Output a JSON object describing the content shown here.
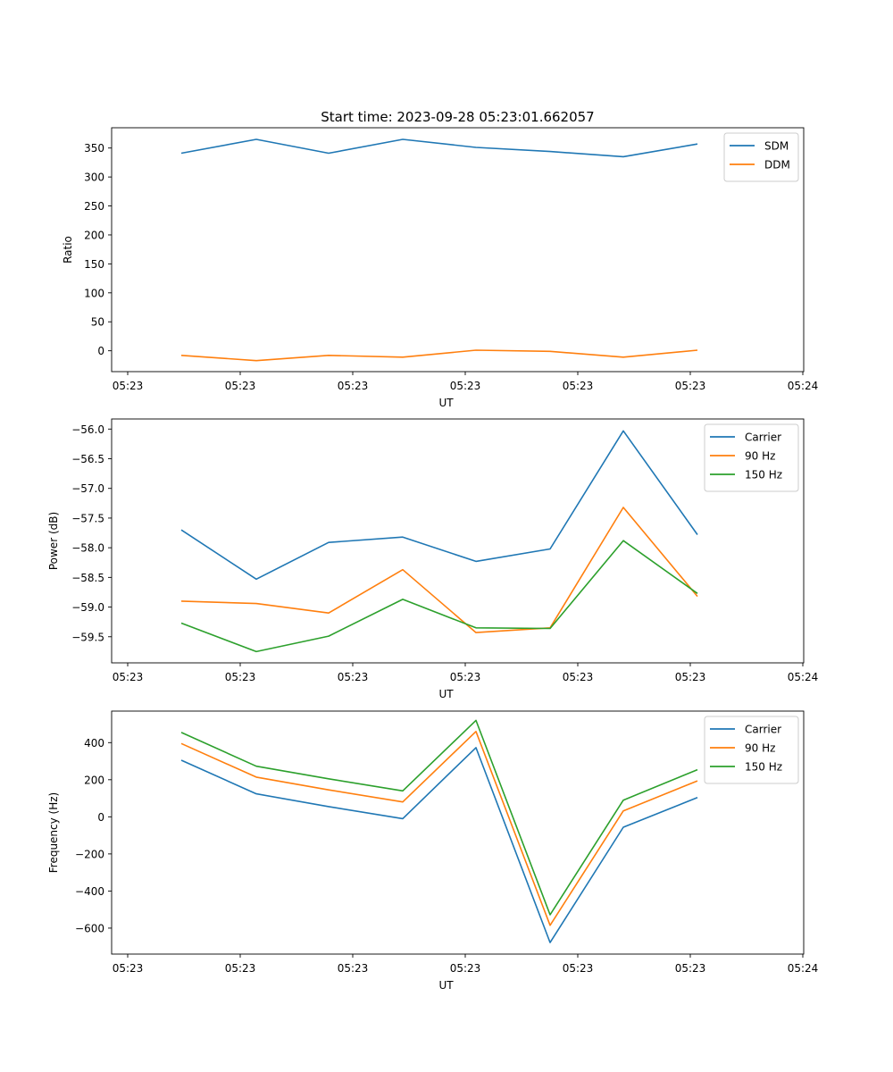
{
  "chart_data": [
    {
      "type": "line",
      "title": "Start time: 2023-09-28 05:23:01.662057",
      "xlabel": "UT",
      "ylabel": "Ratio",
      "x_ticks": [
        "05:23",
        "05:23",
        "05:23",
        "05:23",
        "05:23",
        "05:23",
        "05:24"
      ],
      "y_ticks": [
        0,
        50,
        100,
        150,
        200,
        250,
        300,
        350
      ],
      "ylim": [
        -36,
        385
      ],
      "legend_loc": "upper right",
      "series": [
        {
          "name": "SDM",
          "color": "#1f77b4",
          "values": [
            341,
            365,
            341,
            365,
            351,
            344,
            335,
            357
          ]
        },
        {
          "name": "DDM",
          "color": "#ff7f0e",
          "values": [
            -8,
            -17,
            -8,
            -11,
            1,
            -1,
            -11,
            1
          ]
        }
      ]
    },
    {
      "type": "line",
      "title": "",
      "xlabel": "UT",
      "ylabel": "Power (dB)",
      "x_ticks": [
        "05:23",
        "05:23",
        "05:23",
        "05:23",
        "05:23",
        "05:23",
        "05:24"
      ],
      "y_ticks": [
        -56.0,
        -56.5,
        -57.0,
        -57.5,
        -58.0,
        -58.5,
        -59.0,
        -59.5
      ],
      "ylim": [
        -59.94,
        -55.83
      ],
      "legend_loc": "upper right",
      "series": [
        {
          "name": "Carrier",
          "color": "#1f77b4",
          "values": [
            -57.7,
            -58.53,
            -57.91,
            -57.82,
            -58.23,
            -58.02,
            -56.03,
            -57.78
          ]
        },
        {
          "name": "90 Hz",
          "color": "#ff7f0e",
          "values": [
            -58.9,
            -58.94,
            -59.1,
            -58.37,
            -59.43,
            -59.35,
            -57.32,
            -58.82
          ]
        },
        {
          "name": "150 Hz",
          "color": "#2ca02c",
          "values": [
            -59.27,
            -59.75,
            -59.49,
            -58.87,
            -59.35,
            -59.36,
            -57.88,
            -58.77
          ]
        }
      ]
    },
    {
      "type": "line",
      "title": "",
      "xlabel": "UT",
      "ylabel": "Frequency (Hz)",
      "x_ticks": [
        "05:23",
        "05:23",
        "05:23",
        "05:23",
        "05:23",
        "05:23",
        "05:24"
      ],
      "y_ticks": [
        400,
        200,
        0,
        -200,
        -400,
        -600
      ],
      "ylim": [
        -740,
        570
      ],
      "legend_loc": "upper right",
      "series": [
        {
          "name": "Carrier",
          "color": "#1f77b4",
          "values": [
            305,
            124,
            55,
            -10,
            373,
            -678,
            -56,
            104
          ]
        },
        {
          "name": "90 Hz",
          "color": "#ff7f0e",
          "values": [
            395,
            214,
            145,
            80,
            460,
            -585,
            32,
            194
          ]
        },
        {
          "name": "150 Hz",
          "color": "#2ca02c",
          "values": [
            455,
            273,
            205,
            140,
            520,
            -528,
            90,
            254
          ]
        }
      ]
    }
  ]
}
